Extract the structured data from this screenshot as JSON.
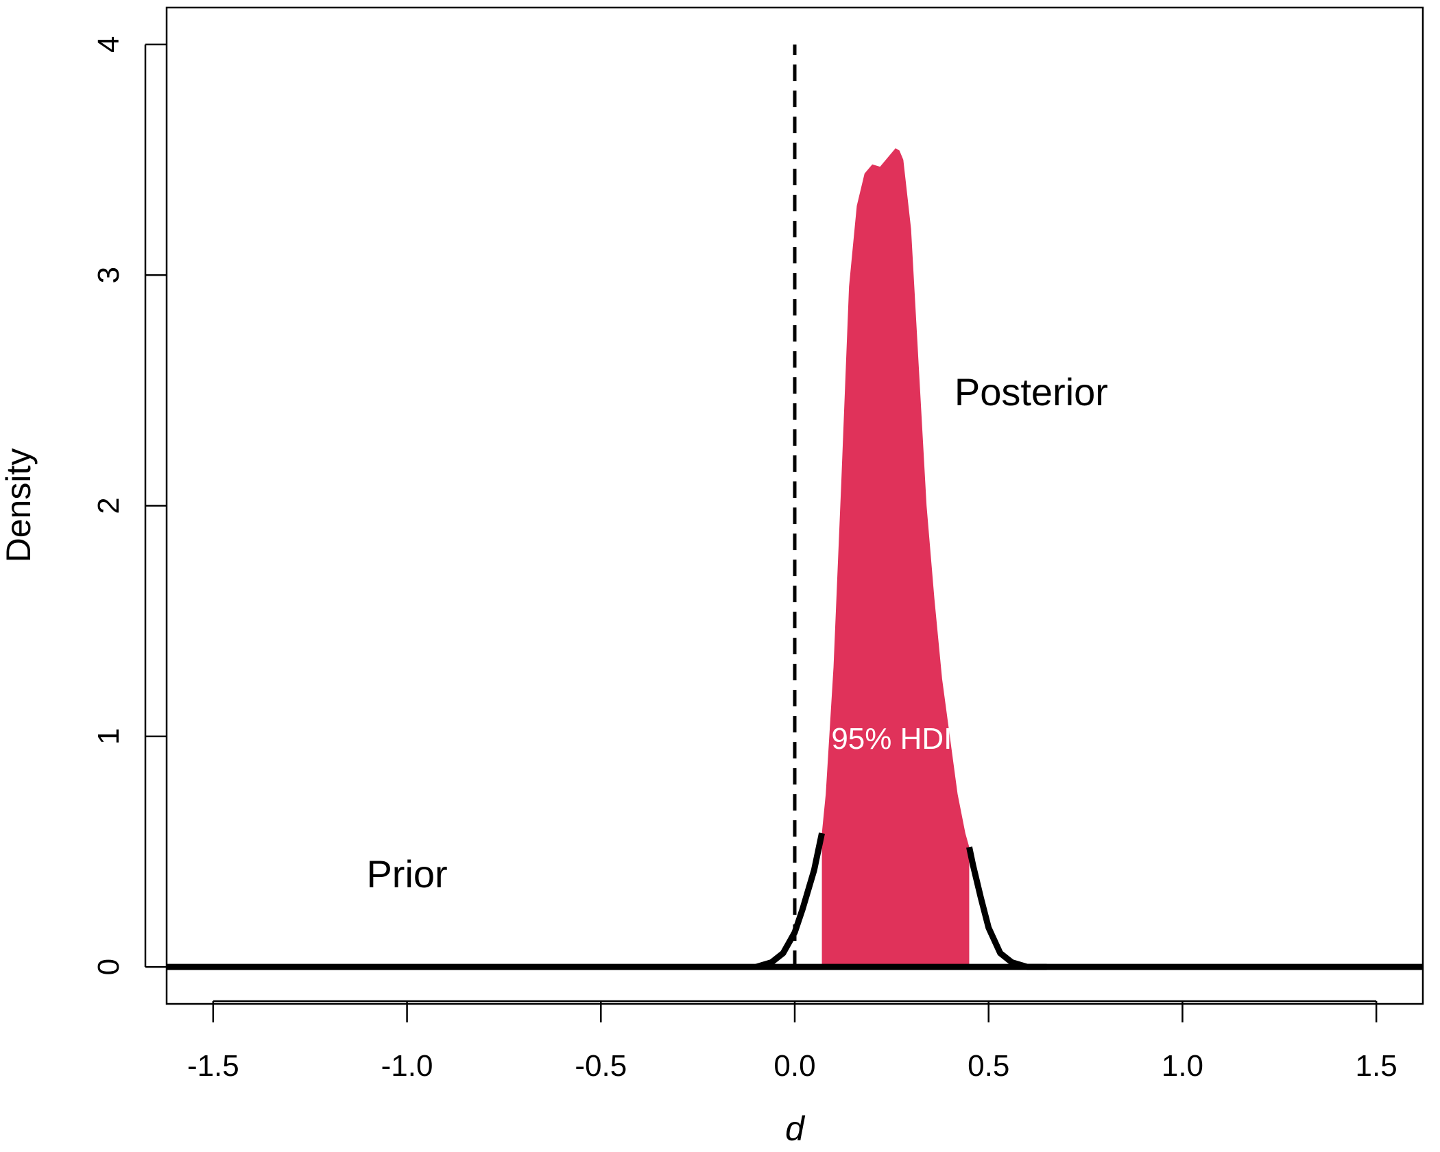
{
  "chart_data": {
    "type": "area",
    "xlabel": "d",
    "ylabel": "Density",
    "xlim": [
      -1.62,
      1.62
    ],
    "ylim": [
      -0.16,
      4.16
    ],
    "x_ticks": [
      -1.5,
      -1.0,
      -0.5,
      0.0,
      0.5,
      1.0,
      1.5
    ],
    "x_tick_labels": [
      "-1.5",
      "-1.0",
      "-0.5",
      "0.0",
      "0.5",
      "1.0",
      "1.5"
    ],
    "y_ticks": [
      0,
      1,
      2,
      3,
      4
    ],
    "y_tick_labels": [
      "0",
      "1",
      "2",
      "3",
      "4"
    ],
    "reference_line": {
      "x": 0,
      "style": "dashed",
      "y_top": 4
    },
    "posterior": {
      "name": "Posterior",
      "color": "#e0325a",
      "x": [
        -0.1,
        -0.06,
        -0.03,
        0.0,
        0.02,
        0.05,
        0.07,
        0.08,
        0.1,
        0.12,
        0.14,
        0.16,
        0.18,
        0.2,
        0.22,
        0.235,
        0.25,
        0.26,
        0.27,
        0.28,
        0.3,
        0.32,
        0.34,
        0.36,
        0.38,
        0.4,
        0.42,
        0.44,
        0.45,
        0.46,
        0.48,
        0.5,
        0.53,
        0.56,
        0.6,
        0.65
      ],
      "y": [
        0.0,
        0.02,
        0.06,
        0.15,
        0.25,
        0.42,
        0.58,
        0.75,
        1.3,
        2.1,
        2.95,
        3.3,
        3.44,
        3.48,
        3.47,
        3.5,
        3.53,
        3.55,
        3.54,
        3.5,
        3.2,
        2.6,
        2.0,
        1.6,
        1.25,
        1.0,
        0.75,
        0.58,
        0.52,
        0.44,
        0.3,
        0.17,
        0.06,
        0.02,
        0.0,
        0.0
      ]
    },
    "prior": {
      "name": "Prior",
      "x": [
        -1.62,
        1.62
      ],
      "y": [
        0.0,
        0.0
      ]
    },
    "hdi": {
      "label": "95% HDI",
      "lower": 0.07,
      "upper": 0.45,
      "level": 0.95
    },
    "annotations": [
      {
        "text": "Posterior",
        "x": 0.61,
        "y": 2.48
      },
      {
        "text": "Prior",
        "x": -1.0,
        "y": 0.39
      },
      {
        "text": "95% HDI",
        "x": 0.25,
        "y": 0.98
      }
    ],
    "grid": false,
    "legend": "none",
    "colors": {
      "hdi_fill": "#e0325a",
      "curve": "#000000",
      "hdi_text": "#ffffff"
    }
  }
}
